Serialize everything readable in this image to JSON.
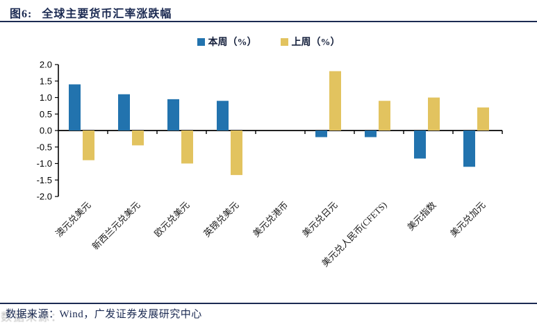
{
  "header": {
    "figure_label": "图6:",
    "title": "全球主要货币汇率涨跌幅"
  },
  "legend": {
    "items": [
      {
        "label": "本周（%）",
        "color": "#2273AE"
      },
      {
        "label": "上周（%）",
        "color": "#E2C35F"
      }
    ]
  },
  "chart_data": {
    "type": "bar",
    "title": "全球主要货币汇率涨跌幅",
    "categories": [
      "澳元兑美元",
      "新西兰元兑美元",
      "欧元兑美元",
      "英镑兑美元",
      "美元兑港币",
      "美元兑日元",
      "美元兑人民币(CFETS)",
      "美元指数",
      "美元兑加元"
    ],
    "series": [
      {
        "name": "本周（%）",
        "color": "#2273AE",
        "values": [
          1.4,
          1.1,
          0.95,
          0.9,
          0.0,
          -0.2,
          -0.2,
          -0.85,
          -1.1
        ]
      },
      {
        "name": "上周（%）",
        "color": "#E2C35F",
        "values": [
          -0.9,
          -0.45,
          -1.0,
          -1.35,
          0.0,
          1.8,
          0.9,
          1.0,
          0.7
        ]
      }
    ],
    "xlabel": "",
    "ylabel": "",
    "ylim": [
      -2.0,
      2.0
    ],
    "ytick_labels": [
      "2.0",
      "1.5",
      "1.0",
      "0.5",
      "0.0",
      "-0.5",
      "-1.0",
      "-1.5",
      "-2.0"
    ],
    "grid": false,
    "legend_position": "top-center",
    "bar_label_rotation_deg": -45
  },
  "footer": {
    "source_label": "数据来源：",
    "source_text": "Wind，广发证券发展研究中心"
  }
}
